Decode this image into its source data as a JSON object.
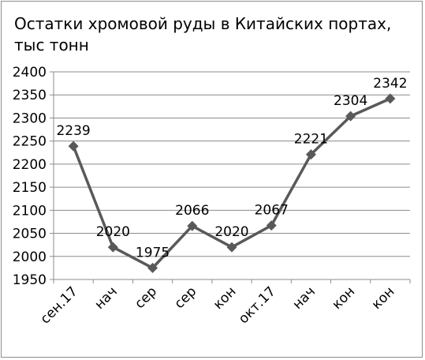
{
  "chart_data": {
    "type": "line",
    "title": "Остатки хромовой руды в Китайских портах, тыс тонн",
    "title_lines": [
      "Остатки хромовой руды в Китайских портах,",
      "тыс тонн"
    ],
    "categories": [
      "сен.17",
      "нач",
      "сер",
      "сер",
      "кон",
      "окт.17",
      "нач",
      "кон",
      "кон"
    ],
    "series": [
      {
        "values": [
          2239,
          2020,
          1975,
          2066,
          2020,
          2067,
          2221,
          2304,
          2342
        ]
      }
    ],
    "ylim": [
      1950,
      2400
    ],
    "yticks": [
      1950,
      2000,
      2050,
      2100,
      2150,
      2200,
      2250,
      2300,
      2350,
      2400
    ],
    "xlabel": "",
    "ylabel": "",
    "grid": true,
    "legend": "none",
    "colors": {
      "line": "#595959",
      "marker": "#595959",
      "grid": "#8c8c8c",
      "axis": "#8c8c8c"
    },
    "marker": "diamond"
  }
}
